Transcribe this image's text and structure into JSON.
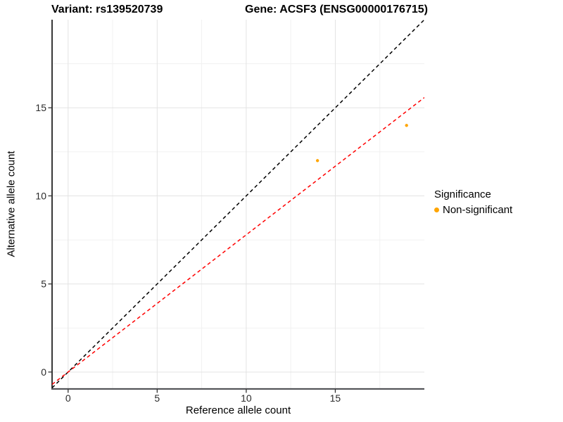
{
  "chart_data": {
    "type": "scatter",
    "titles": {
      "left": "Variant: rs139520739",
      "right": "Gene: ACSF3 (ENSG00000176715)"
    },
    "xlabel": "Reference allele count",
    "ylabel": "Alternative allele count",
    "xlim": [
      -0.9,
      20
    ],
    "ylim": [
      -0.96,
      20
    ],
    "x_ticks": [
      0,
      5,
      10,
      15
    ],
    "y_ticks": [
      0,
      5,
      10,
      15
    ],
    "x_minor_ticks": [
      2.5,
      7.5,
      12.5,
      17.5
    ],
    "y_minor_ticks": [
      2.5,
      7.5,
      12.5,
      17.5
    ],
    "grid": "on",
    "points": [
      {
        "x": 14,
        "y": 12,
        "series": "Non-significant"
      },
      {
        "x": 19,
        "y": 14,
        "series": "Non-significant"
      }
    ],
    "point_color": "#FFA500",
    "point_radius_px": 2.2,
    "lines": [
      {
        "name": "identity-line",
        "slope": 1,
        "intercept": 0,
        "color": "#000000",
        "style": "dashed"
      },
      {
        "name": "regression-line",
        "slope": 0.779,
        "intercept": 0,
        "color": "#FF0000",
        "style": "dashed"
      }
    ],
    "legend": {
      "title": "Significance",
      "position": "right",
      "items": [
        {
          "label": "Non-significant",
          "color": "#FFA500"
        }
      ]
    },
    "style_colors": {
      "major_grid": "#e3e3e3",
      "minor_grid": "#f1f1f1",
      "axis_line_left": "#222222",
      "axis_line_bottom": "#55565a",
      "tick": "#333333",
      "tick_label": "#2b2b2b"
    }
  }
}
